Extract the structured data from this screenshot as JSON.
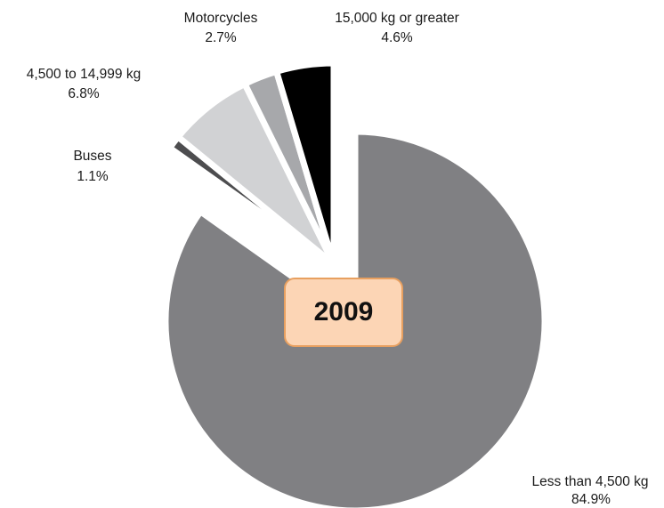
{
  "chart_data": {
    "type": "pie",
    "title": "",
    "center_label": "2009",
    "slices": [
      {
        "label": "Less than 4,500 kg",
        "value_text": "84.9%",
        "value": 84.9,
        "color": "#808083",
        "exploded": false
      },
      {
        "label": "Buses",
        "value_text": "1.1%",
        "value": 1.1,
        "color": "#4d4d4f",
        "exploded": true
      },
      {
        "label": "4,500 to 14,999 kg",
        "value_text": "6.8%",
        "value": 6.8,
        "color": "#d1d2d4",
        "exploded": true
      },
      {
        "label": "Motorcycles",
        "value_text": "2.7%",
        "value": 2.7,
        "color": "#a7a8ab",
        "exploded": true
      },
      {
        "label": "15,000 kg or greater",
        "value_text": "4.6%",
        "value": 4.6,
        "color": "#000000",
        "exploded": true
      }
    ]
  }
}
